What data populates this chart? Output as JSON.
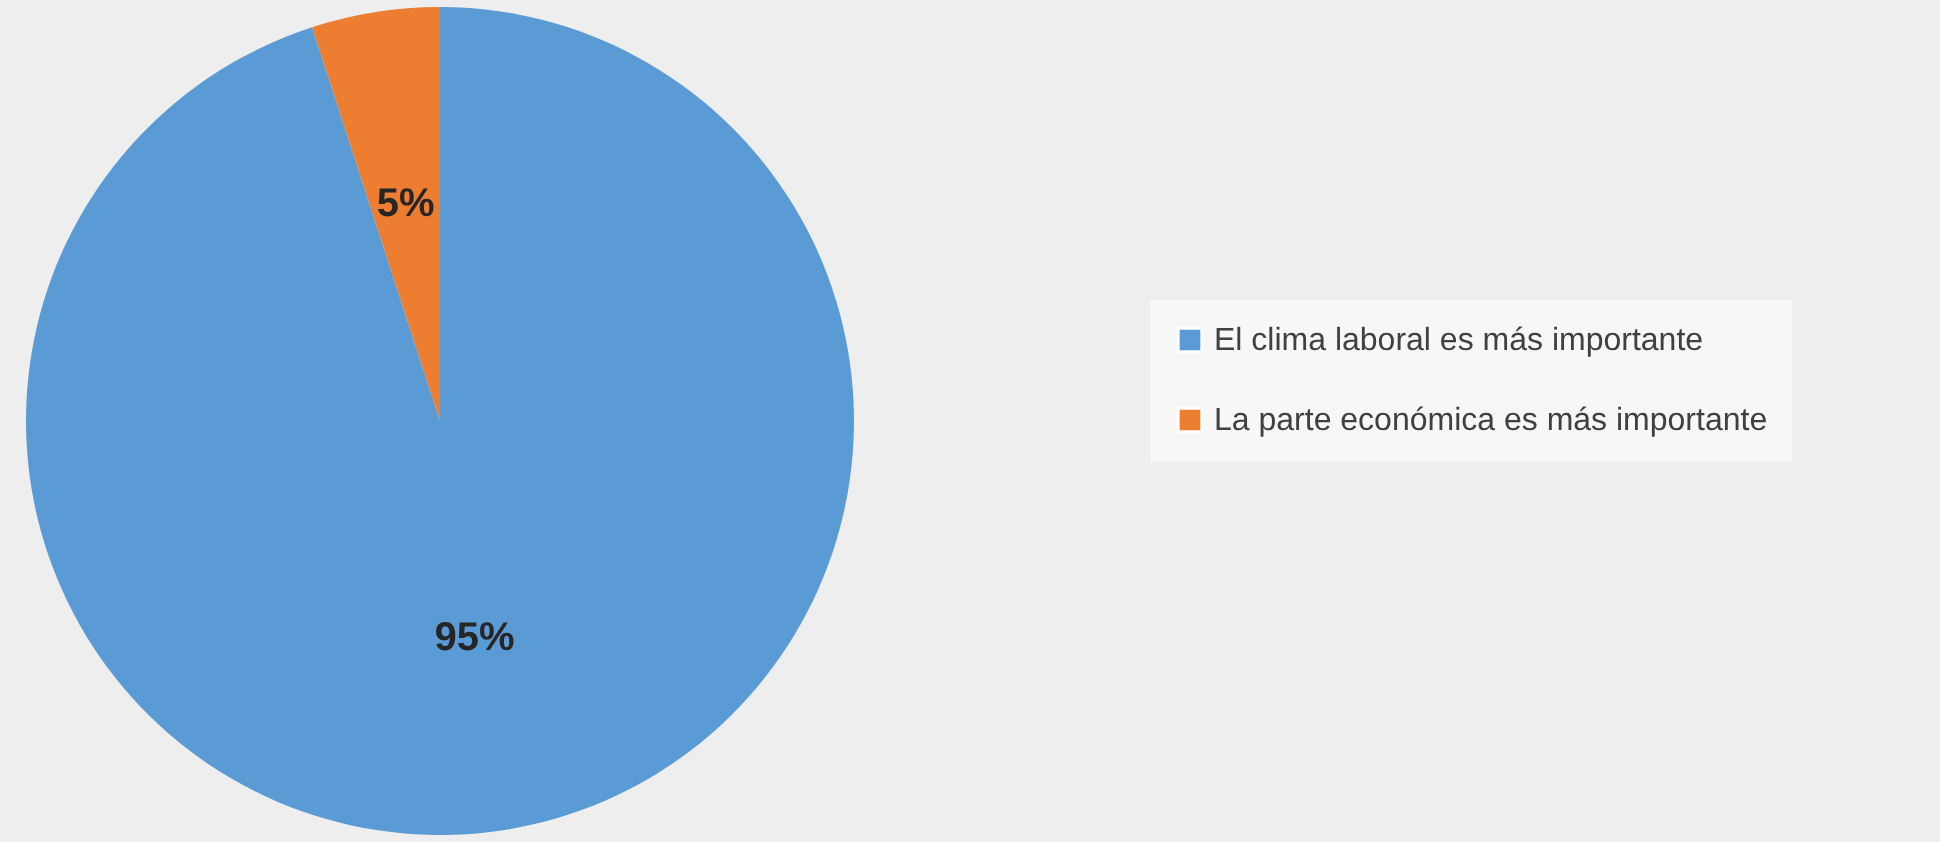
{
  "chart_data": {
    "type": "pie",
    "categories": [
      "El clima laboral es más importante",
      "La parte económica es más importante"
    ],
    "values": [
      95,
      5
    ],
    "colors": [
      "#5b9bd5",
      "#ed7d31"
    ],
    "value_labels": [
      "95%",
      "5%"
    ],
    "legend": "right"
  }
}
